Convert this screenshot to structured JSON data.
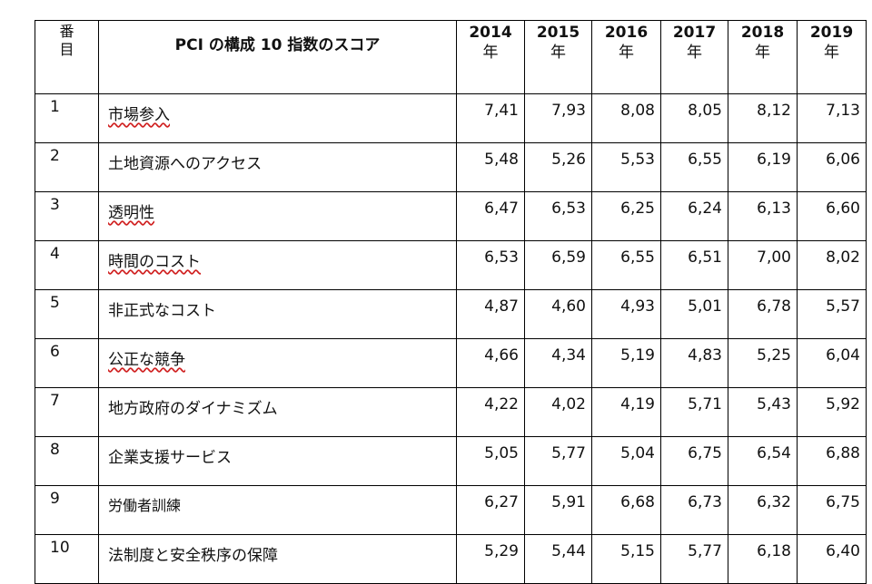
{
  "table": {
    "header": {
      "number": "番目",
      "name": "PCI の構成 10 指数のスコア",
      "years": [
        {
          "year": "2014",
          "unit": "年"
        },
        {
          "year": "2015",
          "unit": "年"
        },
        {
          "year": "2016",
          "unit": "年"
        },
        {
          "year": "2017",
          "unit": "年"
        },
        {
          "year": "2018",
          "unit": "年"
        },
        {
          "year": "2019",
          "unit": "年"
        }
      ]
    },
    "rows": [
      [
        "1",
        "市場参入",
        "7,41",
        "7,93",
        "8,08",
        "8,05",
        "8,12",
        "7,13"
      ],
      [
        "2",
        "土地資源へのアクセス",
        "5,48",
        "5,26",
        "5,53",
        "6,55",
        "6,19",
        "6,06"
      ],
      [
        "3",
        "透明性",
        "6,47",
        "6,53",
        "6,25",
        "6,24",
        "6,13",
        "6,60"
      ],
      [
        "4",
        "時間のコスト",
        "6,53",
        "6,59",
        "6,55",
        "6,51",
        "7,00",
        "8,02"
      ],
      [
        "5",
        "非正式なコスト",
        "4,87",
        "4,60",
        "4,93",
        "5,01",
        "6,78",
        "5,57"
      ],
      [
        "6",
        "公正な競争",
        "4,66",
        "4,34",
        "5,19",
        "4,83",
        "5,25",
        "6,04"
      ],
      [
        "7",
        "地方政府のダイナミズム",
        "4,22",
        "4,02",
        "4,19",
        "5,71",
        "5,43",
        "5,92"
      ],
      [
        "8",
        "企業支援サービス",
        "5,05",
        "5,77",
        "5,04",
        "6,75",
        "6,54",
        "6,88"
      ],
      [
        "9",
        "労働者訓練",
        "6,27",
        "5,91",
        "6,68",
        "6,73",
        "6,32",
        "6,75"
      ],
      [
        "10",
        "法制度と安全秩序の保障",
        "5,29",
        "5,44",
        "5,15",
        "5,77",
        "6,18",
        "6,40"
      ]
    ]
  }
}
